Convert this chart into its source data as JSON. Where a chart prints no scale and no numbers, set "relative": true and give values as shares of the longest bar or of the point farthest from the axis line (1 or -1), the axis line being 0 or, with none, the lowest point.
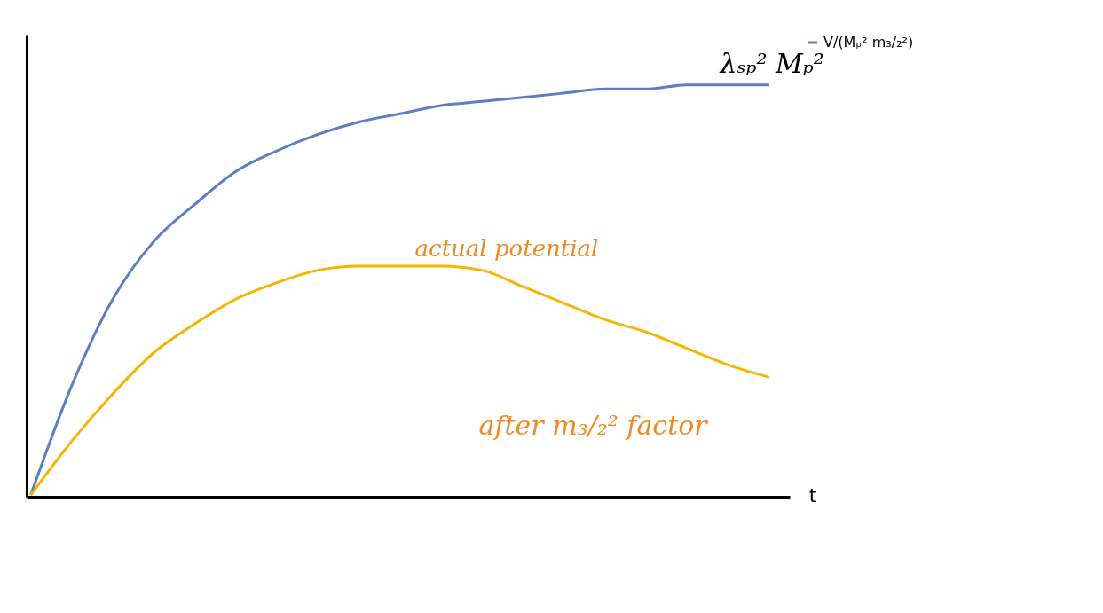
{
  "chart_data": {
    "type": "line",
    "relative": true,
    "xlabel": "t",
    "legend": "right",
    "grid": false,
    "marker": "none",
    "line_style": "solid",
    "categories": [
      null,
      null,
      null,
      null,
      null,
      null,
      null,
      null,
      null,
      null,
      null,
      null,
      null,
      null,
      null,
      null,
      null,
      null,
      null
    ],
    "series": [
      {
        "name": "V/(Mₚ² m₃/₂²)",
        "color": "#5b7fc2",
        "values": [
          0.004,
          0.27,
          0.48,
          0.62,
          0.71,
          0.79,
          0.84,
          0.88,
          0.91,
          0.93,
          0.95,
          0.96,
          0.97,
          0.98,
          0.99,
          0.99,
          1.0,
          1.0,
          1.0
        ]
      },
      {
        "color": "#f7b500",
        "values": [
          0.004,
          0.135,
          0.25,
          0.35,
          0.42,
          0.48,
          0.52,
          0.55,
          0.56,
          0.56,
          0.56,
          0.55,
          0.51,
          0.47,
          0.43,
          0.4,
          0.36,
          0.32,
          0.29
        ]
      }
    ],
    "annotations": [
      "λₛₚ² Mₚ²",
      "actual potential",
      "after m₃/₂² factor"
    ]
  }
}
